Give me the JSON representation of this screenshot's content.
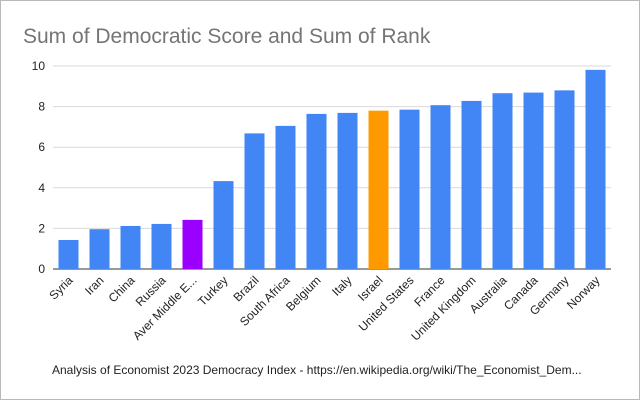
{
  "chart_data": {
    "type": "bar",
    "title": "Sum of Democratic Score and Sum of Rank",
    "xlabel": "",
    "ylabel": "",
    "ylim": [
      0,
      10
    ],
    "yticks": [
      0,
      2,
      4,
      6,
      8,
      10
    ],
    "grid": true,
    "legend": "none",
    "categories": [
      "Syria",
      "Iran",
      "China",
      "Russia",
      "Aver Middle E...",
      "Turkey",
      "Brazil",
      "South Africa",
      "Belgium",
      "Italy",
      "Israel",
      "United States",
      "France",
      "United Kingdom",
      "Australia",
      "Canada",
      "Germany",
      "Norway"
    ],
    "values": [
      1.43,
      1.96,
      2.12,
      2.22,
      2.42,
      4.33,
      6.68,
      7.05,
      7.64,
      7.69,
      7.8,
      7.85,
      8.07,
      8.28,
      8.66,
      8.69,
      8.8,
      9.81
    ],
    "colors": [
      "#4285f4",
      "#4285f4",
      "#4285f4",
      "#4285f4",
      "#9900ff",
      "#4285f4",
      "#4285f4",
      "#4285f4",
      "#4285f4",
      "#4285f4",
      "#ff9900",
      "#4285f4",
      "#4285f4",
      "#4285f4",
      "#4285f4",
      "#4285f4",
      "#4285f4",
      "#4285f4"
    ],
    "footnote": "Analysis of  Economist 2023 Democracy Index - https://en.wikipedia.org/wiki/The_Economist_Dem..."
  }
}
